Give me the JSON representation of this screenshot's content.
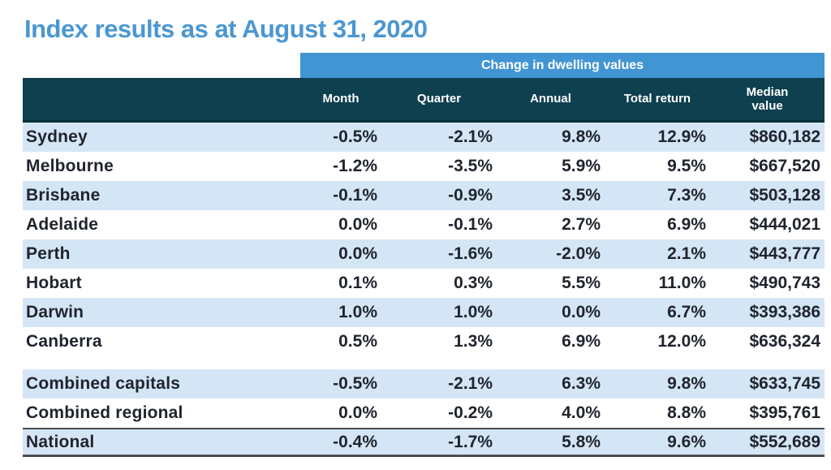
{
  "colors": {
    "title-blue": "#4a97d2",
    "band-blue": "#4295d3",
    "header-teal": "#0e4050",
    "row-alt-blue": "#d4e6f5",
    "body-text": "#20242e",
    "rule-dark": "#4d4d4d"
  },
  "chart_data": {
    "type": "table",
    "title": "Index results as at August 31, 2020",
    "group_header": "Change in dwelling values",
    "columns": [
      "Month",
      "Quarter",
      "Annual",
      "Total return",
      "Median value"
    ],
    "column_keys": [
      "month",
      "quarter",
      "annual",
      "total_return",
      "median_value"
    ],
    "sections": [
      {
        "name": "capitals",
        "rows": [
          {
            "label": "Sydney",
            "month": "-0.5%",
            "quarter": "-2.1%",
            "annual": "9.8%",
            "total_return": "12.9%",
            "median_value": "$860,182"
          },
          {
            "label": "Melbourne",
            "month": "-1.2%",
            "quarter": "-3.5%",
            "annual": "5.9%",
            "total_return": "9.5%",
            "median_value": "$667,520"
          },
          {
            "label": "Brisbane",
            "month": "-0.1%",
            "quarter": "-0.9%",
            "annual": "3.5%",
            "total_return": "7.3%",
            "median_value": "$503,128"
          },
          {
            "label": "Adelaide",
            "month": "0.0%",
            "quarter": "-0.1%",
            "annual": "2.7%",
            "total_return": "6.9%",
            "median_value": "$444,021"
          },
          {
            "label": "Perth",
            "month": "0.0%",
            "quarter": "-1.6%",
            "annual": "-2.0%",
            "total_return": "2.1%",
            "median_value": "$443,777"
          },
          {
            "label": "Hobart",
            "month": "0.1%",
            "quarter": "0.3%",
            "annual": "5.5%",
            "total_return": "11.0%",
            "median_value": "$490,743"
          },
          {
            "label": "Darwin",
            "month": "1.0%",
            "quarter": "1.0%",
            "annual": "0.0%",
            "total_return": "6.7%",
            "median_value": "$393,386"
          },
          {
            "label": "Canberra",
            "month": "0.5%",
            "quarter": "1.3%",
            "annual": "6.9%",
            "total_return": "12.0%",
            "median_value": "$636,324"
          }
        ]
      },
      {
        "name": "combined",
        "rows": [
          {
            "label": "Combined capitals",
            "month": "-0.5%",
            "quarter": "-2.1%",
            "annual": "6.3%",
            "total_return": "9.8%",
            "median_value": "$633,745"
          },
          {
            "label": "Combined regional",
            "month": "0.0%",
            "quarter": "-0.2%",
            "annual": "4.0%",
            "total_return": "8.8%",
            "median_value": "$395,761"
          }
        ]
      },
      {
        "name": "national",
        "rows": [
          {
            "label": "National",
            "month": "-0.4%",
            "quarter": "-1.7%",
            "annual": "5.8%",
            "total_return": "9.6%",
            "median_value": "$552,689"
          }
        ]
      }
    ]
  }
}
